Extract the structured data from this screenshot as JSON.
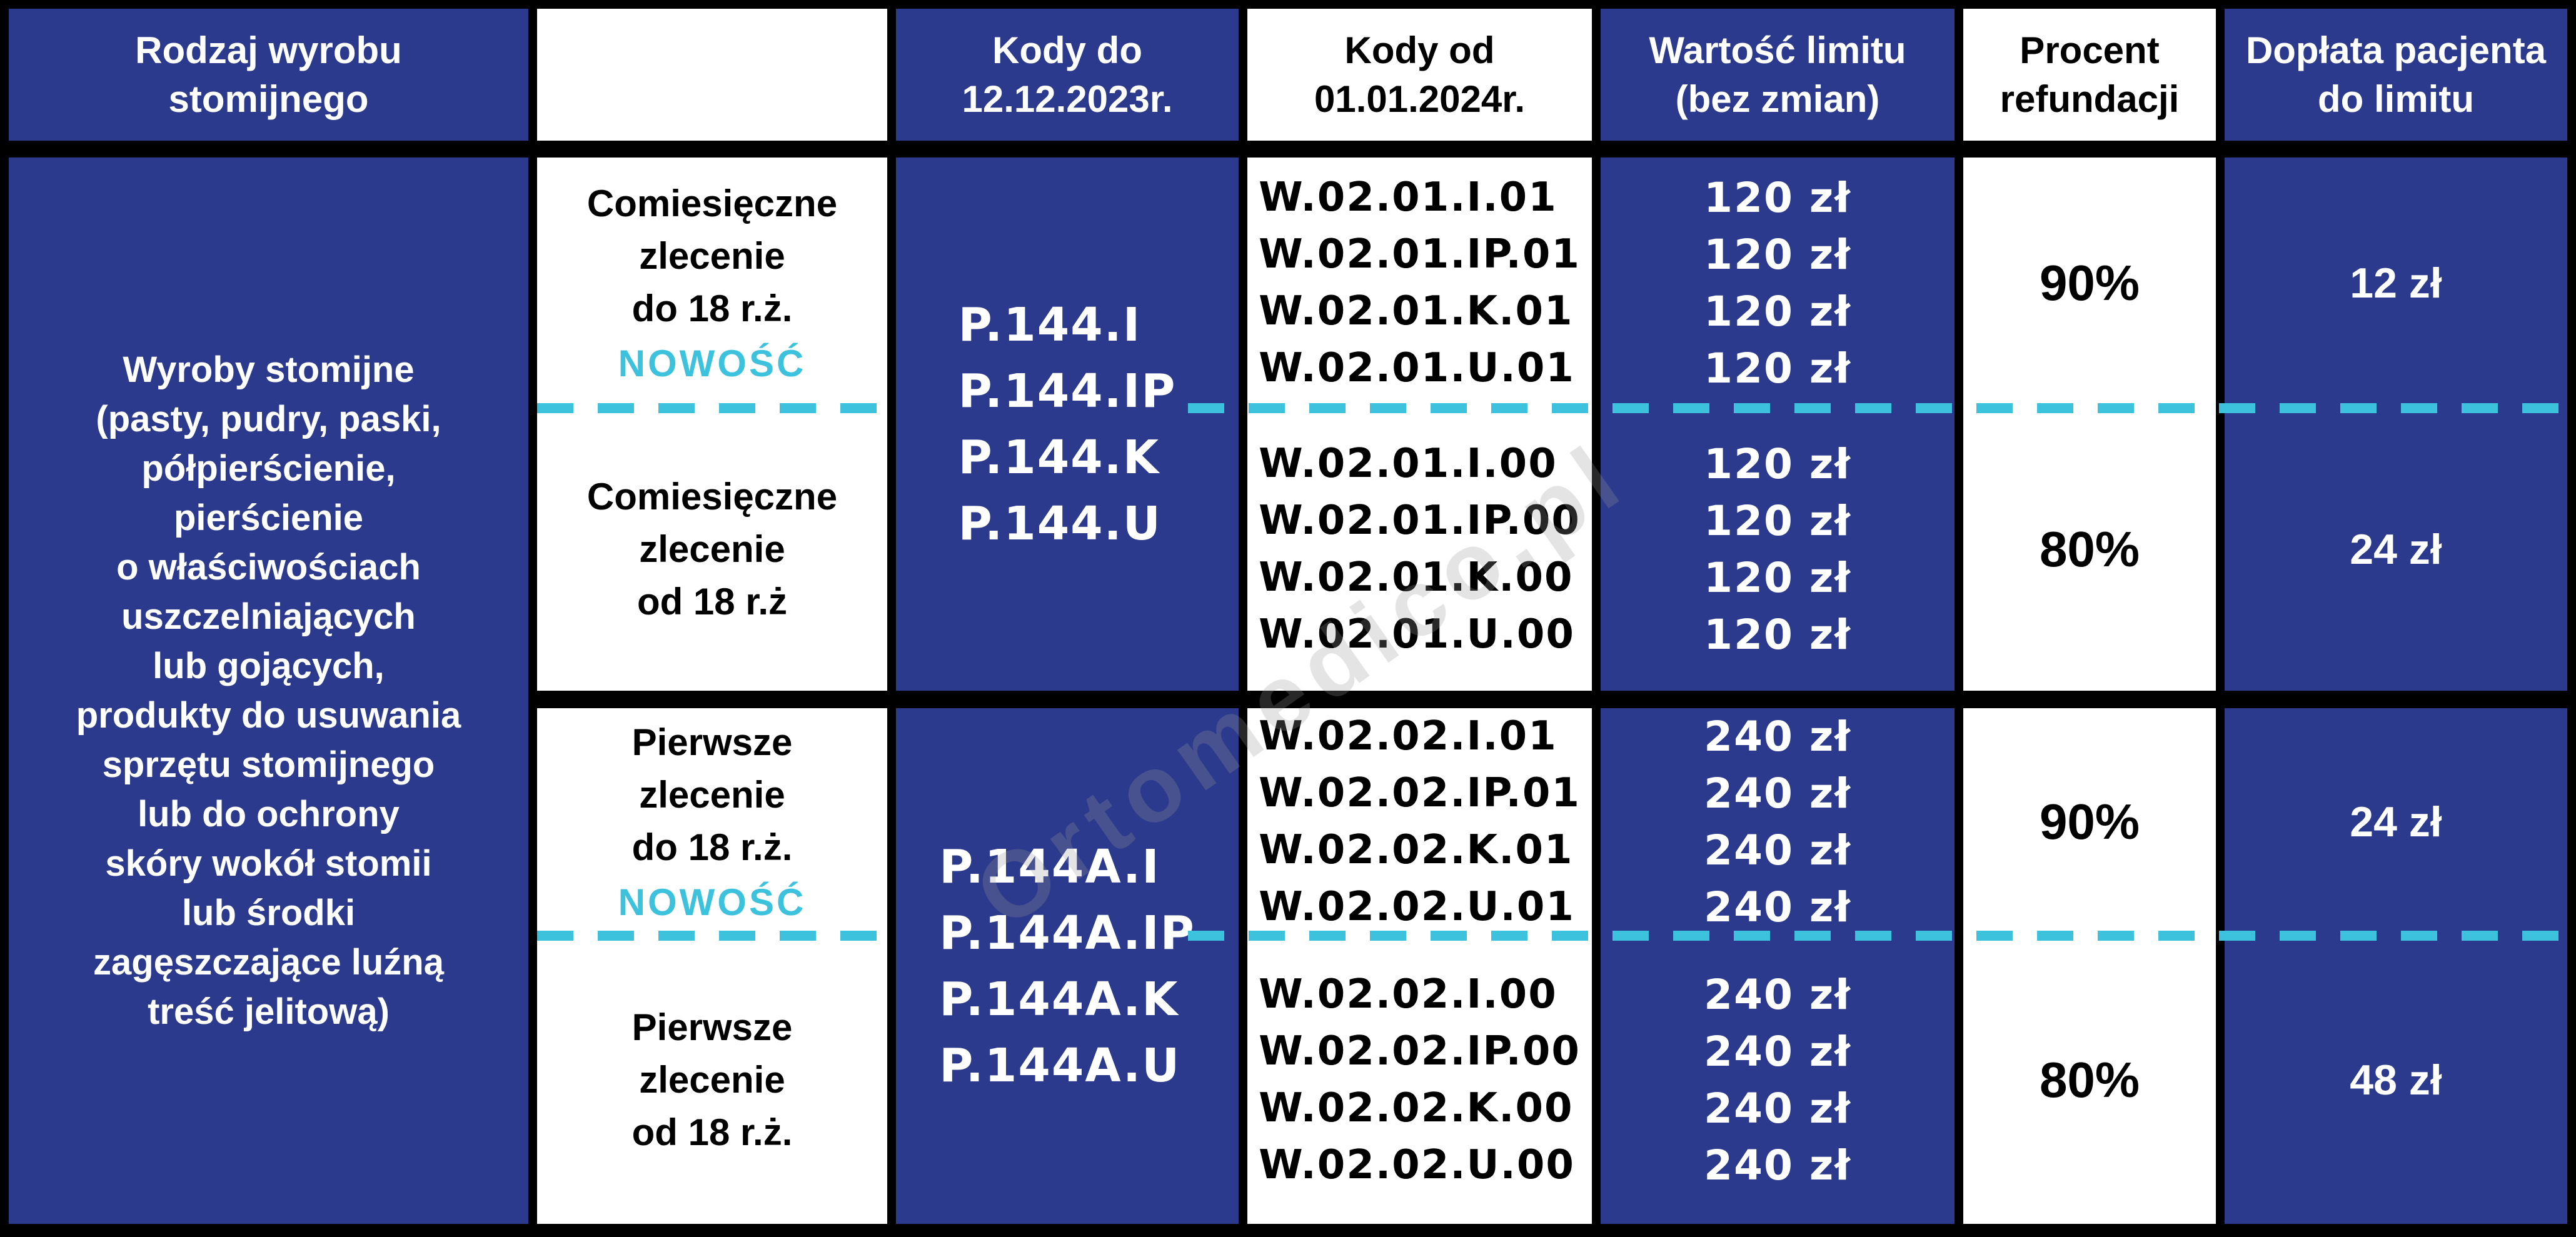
{
  "colors": {
    "navy": "#2b3a8c",
    "cyan": "#3cc2dd",
    "black": "#000000",
    "white": "#ffffff",
    "wmgray": "#999999"
  },
  "header": {
    "product_type": [
      "Rodzaj wyrobu",
      "stomijnego"
    ],
    "order_type": [],
    "codes_until": [
      "Kody do",
      "12.12.2023r."
    ],
    "codes_from": [
      "Kody od",
      "01.01.2024r."
    ],
    "limit_value": [
      "Wartość limitu",
      "(bez zmian)"
    ],
    "refund_percent": [
      "Procent",
      "refundacji"
    ],
    "patient_copay": [
      "Dopłata pacjenta",
      "do limitu"
    ]
  },
  "product": {
    "lines": [
      "Wyroby stomijne",
      "(pasty, pudry, paski,",
      "półpierścienie,",
      "pierścienie",
      "o właściwościach",
      "uszczelniających",
      "lub gojących,",
      "produkty do usuwania",
      "sprzętu stomijnego",
      "lub do ochrony",
      "skóry wokół stomii",
      "lub środki",
      "zagęszczające luźną",
      "treść jelitową)"
    ]
  },
  "sections": {
    "monthly": {
      "top_order": [
        "Comiesięczne",
        "zlecenie",
        "do 18 r.ż."
      ],
      "top_badge": "NOWOŚĆ",
      "bottom_order": [
        "Comiesięczne",
        "zlecenie",
        "od 18 r.ż"
      ],
      "codes_old": [
        "P.144.I",
        "P.144.IP",
        "P.144.K",
        "P.144.U"
      ],
      "top_codes_new": [
        "W.02.01.I.01",
        "W.02.01.IP.01",
        "W.02.01.K.01",
        "W.02.01.U.01"
      ],
      "bottom_codes_new": [
        "W.02.01.I.00",
        "W.02.01.IP.00",
        "W.02.01.K.00",
        "W.02.01.U.00"
      ],
      "top_limits": [
        "120 zł",
        "120 zł",
        "120 zł",
        "120 zł"
      ],
      "bottom_limits": [
        "120 zł",
        "120 zł",
        "120 zł",
        "120 zł"
      ],
      "top_refund": "90%",
      "bottom_refund": "80%",
      "top_copay": "12 zł",
      "bottom_copay": "24 zł"
    },
    "first": {
      "top_order": [
        "Pierwsze",
        "zlecenie",
        "do 18 r.ż."
      ],
      "top_badge": "NOWOŚĆ",
      "bottom_order": [
        "Pierwsze",
        "zlecenie",
        "od 18 r.ż."
      ],
      "codes_old": [
        "P.144A.I",
        "P.144A.IP",
        "P.144A.K",
        "P.144A.U"
      ],
      "top_codes_new": [
        "W.02.02.I.01",
        "W.02.02.IP.01",
        "W.02.02.K.01",
        "W.02.02.U.01"
      ],
      "bottom_codes_new": [
        "W.02.02.I.00",
        "W.02.02.IP.00",
        "W.02.02.K.00",
        "W.02.02.U.00"
      ],
      "top_limits": [
        "240 zł",
        "240 zł",
        "240 zł",
        "240 zł"
      ],
      "bottom_limits": [
        "240 zł",
        "240 zł",
        "240 zł",
        "240 zł"
      ],
      "top_refund": "90%",
      "bottom_refund": "80%",
      "top_copay": "24 zł",
      "bottom_copay": "48 zł"
    }
  },
  "watermark": "Ortomedico.pl"
}
